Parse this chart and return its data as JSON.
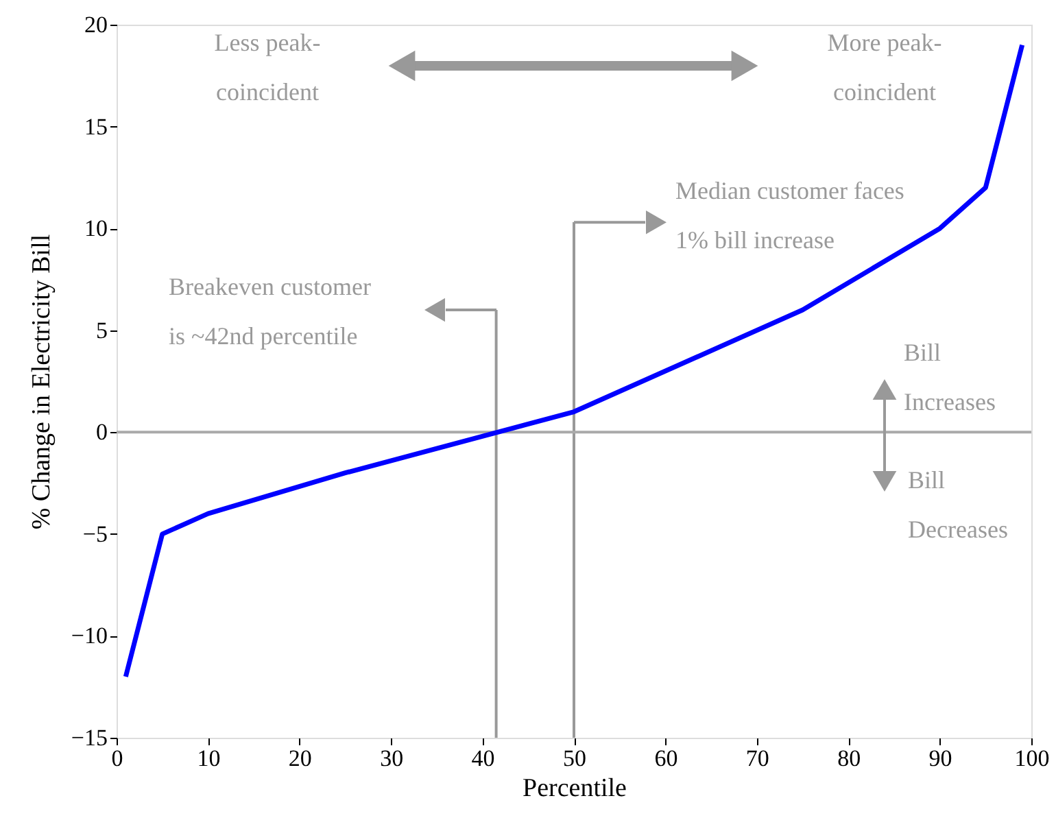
{
  "chart_data": {
    "type": "line",
    "xlabel": "Percentile",
    "ylabel": "% Change in Electricity Bill",
    "x": [
      1,
      5,
      10,
      25,
      50,
      75,
      90,
      95,
      99
    ],
    "series": [
      {
        "color": "#0000ff",
        "values": [
          -12,
          -5,
          -4,
          -2,
          1,
          6,
          10,
          12,
          19
        ]
      }
    ],
    "xlim": [
      0,
      100
    ],
    "xticks": [
      0,
      10,
      20,
      30,
      40,
      50,
      60,
      70,
      80,
      90,
      100
    ],
    "ylim": [
      -15,
      20
    ],
    "yticks": [
      -15,
      -10,
      -5,
      0,
      5,
      10,
      15,
      20
    ],
    "ref_lines": [
      {
        "axis": "y",
        "value": 0,
        "color": "#aaaaaa"
      },
      {
        "axis": "x",
        "value": 41.5,
        "color": "#999999"
      },
      {
        "axis": "x",
        "value": 50,
        "color": "#999999"
      }
    ],
    "annotations": [
      "Less peak-\ncoincident",
      "More peak-\ncoincident",
      {
        "text": "Median customer faces\n1% bill increase",
        "x": 50,
        "y": 10.3
      },
      "Breakeven customer\nis ~42nd percentile",
      "Bill\nIncreases",
      "Bill\nDecreases"
    ],
    "grid": false,
    "marker": "none",
    "line_style": "solid"
  }
}
